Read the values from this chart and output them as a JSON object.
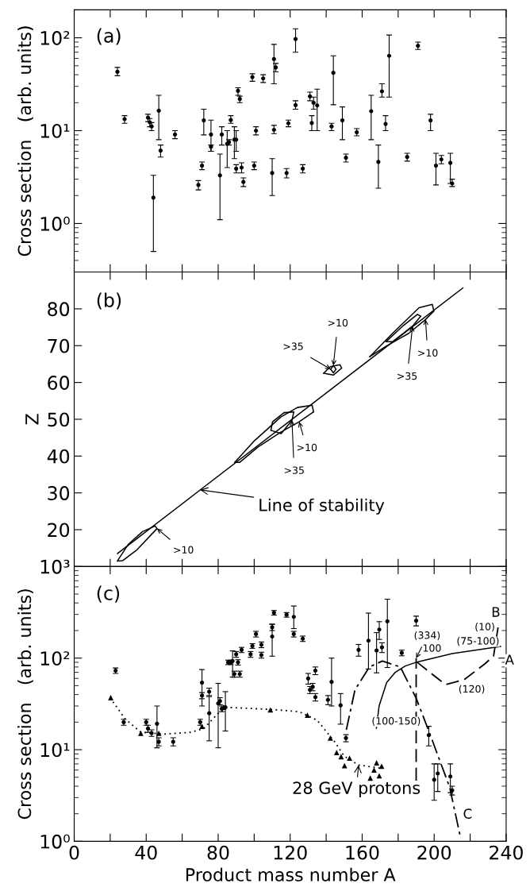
{
  "chart_data": [
    {
      "type": "scatter",
      "ylabel": "Cross section   (arb. units)",
      "log": "y",
      "marker": "circle",
      "tick_labels": "y",
      "legend": false,
      "grid": false,
      "xlim": [
        0,
        240
      ],
      "xticks": [
        {
          "value": 0,
          "label": null
        },
        {
          "value": 20,
          "label": null
        },
        {
          "value": 40,
          "label": null
        },
        {
          "value": 60,
          "label": null
        },
        {
          "value": 80,
          "label": null
        },
        {
          "value": 100,
          "label": null
        },
        {
          "value": 120,
          "label": null
        },
        {
          "value": 140,
          "label": null
        },
        {
          "value": 160,
          "label": null
        },
        {
          "value": 180,
          "label": null
        },
        {
          "value": 200,
          "label": null
        },
        {
          "value": 220,
          "label": null
        },
        {
          "value": 240,
          "label": null
        }
      ],
      "ylim": [
        0.3,
        200
      ],
      "yticks": [
        {
          "value": 1,
          "label": "10⁰"
        },
        {
          "value": 10,
          "label": "10¹"
        },
        {
          "value": 100,
          "label": "10²"
        }
      ],
      "annotations": [
        "(a)"
      ],
      "series": [
        {
          "color": "#000000",
          "x": [
            24,
            28,
            41,
            42,
            43,
            44,
            47,
            48,
            56,
            69,
            71,
            72,
            76,
            76,
            81,
            82,
            85,
            86,
            87,
            89,
            90,
            90,
            91,
            92,
            93,
            94,
            99,
            100,
            101,
            105,
            110,
            111,
            111,
            112,
            118,
            119,
            123,
            123,
            127,
            131,
            132,
            133,
            135,
            143,
            144,
            149,
            151,
            157,
            165,
            169,
            171,
            173,
            175,
            185,
            191,
            198,
            201,
            204,
            209,
            210
          ],
          "values": [
            43,
            13.3,
            13.8,
            12.3,
            11.1,
            1.9,
            16.4,
            6.1,
            9.1,
            2.6,
            4.2,
            12.9,
            9.1,
            6.7,
            3.3,
            9.1,
            7.2,
            7.5,
            13,
            8,
            8,
            3.9,
            26.8,
            21.9,
            4,
            2.8,
            37.7,
            4.2,
            10,
            36.5,
            3.5,
            59,
            10.2,
            48,
            3.5,
            12,
            97,
            18.8,
            3.9,
            23.4,
            12.1,
            20,
            18.7,
            11.1,
            42,
            12.9,
            5.1,
            9.6,
            16.2,
            4.6,
            26.5,
            11.8,
            64,
            5.2,
            82,
            12.9,
            4.2,
            4.9,
            4.5,
            2.7
          ],
          "errors": [
            [
              39,
              48
            ],
            [
              12,
              14.5
            ],
            [
              12.5,
              15
            ],
            [
              11,
              13.5
            ],
            [
              10,
              12.2
            ],
            [
              0.5,
              3.3
            ],
            [
              8,
              24
            ],
            [
              5.2,
              7
            ],
            [
              8.2,
              10
            ],
            [
              2.3,
              2.9
            ],
            [
              3.8,
              4.6
            ],
            [
              9,
              17
            ],
            [
              6,
              13
            ],
            [
              6,
              7
            ],
            [
              1.1,
              5.6
            ],
            [
              7,
              11
            ],
            [
              4,
              10
            ],
            [
              7,
              8
            ],
            [
              12,
              14.5
            ],
            [
              5,
              11
            ],
            [
              6,
              10
            ],
            [
              3.5,
              4.3
            ],
            [
              24,
              29
            ],
            [
              20,
              23.5
            ],
            [
              3.5,
              4.5
            ],
            [
              2.5,
              3.1
            ],
            [
              34,
              41
            ],
            [
              3.8,
              4.6
            ],
            [
              9,
              11
            ],
            [
              33,
              40
            ],
            [
              2,
              5
            ],
            [
              32,
              85
            ],
            [
              9.3,
              11.4
            ],
            [
              43,
              53
            ],
            [
              3.1,
              3.9
            ],
            [
              11,
              13
            ],
            [
              70,
              125
            ],
            [
              17,
              21
            ],
            [
              3.5,
              4.3
            ],
            [
              21,
              26
            ],
            [
              10,
              14.5
            ],
            [
              17,
              23
            ],
            [
              10,
              28
            ],
            [
              10,
              12
            ],
            [
              19,
              64
            ],
            [
              8,
              18
            ],
            [
              4.6,
              5.6
            ],
            [
              8.8,
              10.5
            ],
            [
              8,
              24
            ],
            [
              2.4,
              7
            ],
            [
              23,
              32
            ],
            [
              10,
              14.5
            ],
            [
              23,
              107
            ],
            [
              4.7,
              5.7
            ],
            [
              75,
              90
            ],
            [
              10,
              15
            ],
            [
              2.6,
              5.7
            ],
            [
              4.4,
              5.4
            ],
            [
              2.7,
              5.7
            ],
            [
              2.5,
              3
            ]
          ]
        }
      ]
    },
    {
      "type": "line",
      "ylabel": "Z",
      "tick_labels": "y",
      "legend": false,
      "grid": false,
      "line_style": "solid",
      "xlim": [
        0,
        240
      ],
      "xticks": [
        {
          "value": 0,
          "label": null
        },
        {
          "value": 20,
          "label": null
        },
        {
          "value": 40,
          "label": null
        },
        {
          "value": 60,
          "label": null
        },
        {
          "value": 80,
          "label": null
        },
        {
          "value": 100,
          "label": null
        },
        {
          "value": 120,
          "label": null
        },
        {
          "value": 140,
          "label": null
        },
        {
          "value": 160,
          "label": null
        },
        {
          "value": 180,
          "label": null
        },
        {
          "value": 200,
          "label": null
        },
        {
          "value": 220,
          "label": null
        },
        {
          "value": 240,
          "label": null
        }
      ],
      "ylim": [
        10,
        90
      ],
      "yticks": [
        20,
        30,
        40,
        50,
        60,
        70,
        80
      ],
      "annotations": [
        "(b)",
        {
          "text": ">10",
          "x": 144,
          "y": 64.6
        },
        {
          "text": ">35",
          "x": 142.5,
          "y": 63.6
        },
        {
          "text": ">10",
          "x": 195.2,
          "y": 77.1
        },
        {
          "text": ">35",
          "x": 188,
          "y": 75.3
        },
        {
          "text": ">10",
          "x": 125,
          "y": 49.3
        },
        {
          "text": ">35",
          "x": 121,
          "y": 49.7
        },
        {
          "text": "Line of stability",
          "x": 70,
          "y": 30.8
        },
        {
          "text": ">10",
          "x": 46,
          "y": 20.3
        }
      ],
      "series": [
        {
          "color": "#000000",
          "x": [
            24,
            216
          ],
          "values": [
            13.5,
            85.7
          ]
        },
        {
          "color": "#000000",
          "x": [
            89.2,
            100.2,
            114.8,
            124,
            132.2,
            133
          ],
          "values": [
            38.3,
            44.2,
            50.6,
            53.2,
            53.8,
            52
          ]
        },
        {
          "color": "#000000",
          "x": [
            89.2,
            92,
            102,
            114.8,
            125,
            133
          ],
          "values": [
            38.3,
            38.3,
            42.4,
            46.5,
            49.3,
            52
          ]
        },
        {
          "color": "#000000",
          "x": [
            109.3,
            110.2,
            116.6,
            122
          ],
          "values": [
            47,
            49.3,
            51.8,
            52
          ]
        },
        {
          "color": "#000000",
          "x": [
            109.3,
            115,
            121,
            122
          ],
          "values": [
            47,
            46.1,
            49.7,
            52
          ]
        },
        {
          "color": "#000000",
          "x": [
            164.2,
            177,
            191.6,
            199,
            199.8
          ],
          "values": [
            67,
            73.4,
            80.3,
            81.2,
            79.4
          ]
        },
        {
          "color": "#000000",
          "x": [
            164.2,
            173.2,
            186,
            195.2,
            199.8
          ],
          "values": [
            67,
            69.8,
            73.4,
            77.1,
            79.4
          ]
        },
        {
          "color": "#000000",
          "x": [
            173.3,
            182.5,
            190.7,
            192.5
          ],
          "values": [
            71.1,
            75.3,
            78.5,
            78
          ]
        },
        {
          "color": "#000000",
          "x": [
            173.3,
            177,
            188,
            192.5
          ],
          "values": [
            71.1,
            71.1,
            75.3,
            78
          ]
        },
        {
          "color": "#000000",
          "x": [
            138.6,
            142.3,
            147.7,
            148.6
          ],
          "values": [
            62.5,
            64.3,
            64.8,
            63.9
          ]
        },
        {
          "color": "#000000",
          "x": [
            138.6,
            144,
            148.6
          ],
          "values": [
            62.5,
            62,
            63.9
          ]
        },
        {
          "color": "#000000",
          "x": [
            142.5,
            144,
            145.5
          ],
          "values": [
            63.6,
            64.6,
            63.6
          ]
        },
        {
          "color": "#000000",
          "x": [
            142.5,
            144,
            145.5
          ],
          "values": [
            63.6,
            62.6,
            63.6
          ]
        },
        {
          "color": "#000000",
          "x": [
            24,
            30,
            38,
            45,
            46
          ],
          "values": [
            11.5,
            16,
            19.5,
            21,
            20.3
          ]
        },
        {
          "color": "#000000",
          "x": [
            24,
            27,
            35,
            46
          ],
          "values": [
            11.5,
            11.6,
            14.6,
            20.3
          ]
        }
      ]
    },
    {
      "type": "scatter",
      "xlabel": "Product mass number A",
      "ylabel": "Cross section   (arb. units)",
      "log": "y",
      "legend": false,
      "grid": false,
      "xlim": [
        0,
        240
      ],
      "xticks": [
        0,
        {
          "value": 20,
          "label": null
        },
        40,
        {
          "value": 60,
          "label": null
        },
        80,
        {
          "value": 100,
          "label": null
        },
        120,
        {
          "value": 140,
          "label": null
        },
        160,
        {
          "value": 180,
          "label": null
        },
        200,
        {
          "value": 220,
          "label": null
        },
        240
      ],
      "ylim": [
        1,
        1000
      ],
      "yticks": [
        {
          "value": 1,
          "label": "10⁰"
        },
        {
          "value": 10,
          "label": "10¹"
        },
        {
          "value": 100,
          "label": "10²"
        },
        {
          "value": 1000,
          "label": "10³"
        }
      ],
      "annotations": [
        "(c)",
        {
          "text": "28 GeV protons",
          "x": 158,
          "y": 6.8
        },
        {
          "text": "B",
          "x": 235.5,
          "y": 216
        },
        {
          "text": "A",
          "x": 237,
          "y": 134
        },
        {
          "text": "C",
          "x": 214.3,
          "y": 1.18
        },
        {
          "text": "(10)",
          "x": 235.5,
          "y": 216
        },
        {
          "text": "100",
          "x": 200,
          "y": 101
        },
        {
          "text": "(75-100)",
          "x": 217,
          "y": 117.7
        },
        {
          "text": "(120)",
          "x": 216.6,
          "y": 58
        },
        {
          "text": "(100-150)",
          "x": 167.9,
          "y": 17.1
        },
        {
          "text": "(334)",
          "x": 190,
          "y": 100
        }
      ],
      "series": [
        {
          "type": "scatter",
          "marker": "circle",
          "color": "#000000",
          "x": [
            23,
            27.5,
            40,
            41,
            43,
            46,
            47,
            55,
            70,
            71,
            71,
            75,
            75,
            80,
            81,
            82,
            84,
            85.5,
            87,
            88,
            89,
            90,
            91,
            92,
            93,
            98,
            99,
            101,
            104,
            104,
            110,
            110,
            111,
            118,
            122,
            122,
            127,
            130,
            131,
            132.5,
            134,
            134,
            141,
            143,
            148,
            151,
            158,
            163.5,
            168,
            169.5,
            171,
            174,
            182,
            190,
            197,
            200,
            202,
            209,
            210
          ],
          "values": [
            73,
            20,
            20,
            17,
            15.2,
            19.2,
            12.2,
            12.2,
            20,
            54,
            39,
            43,
            25,
            32,
            34,
            28,
            29,
            90,
            90,
            93,
            67,
            110,
            90,
            67,
            123,
            110,
            136,
            183,
            140,
            108,
            172,
            217,
            313,
            297,
            282,
            183,
            163,
            60,
            45,
            48.5,
            73,
            37.5,
            35,
            55,
            30.5,
            13.4,
            123,
            155,
            121,
            205,
            131,
            252,
            114,
            256,
            14.4,
            4.7,
            5.5,
            5.1,
            3.6
          ],
          "errors": [
            [
              68,
              78
            ],
            [
              18.5,
              21.5
            ],
            [
              18.5,
              21.5
            ],
            [
              15.5,
              18.5
            ],
            [
              14,
              16.5
            ],
            [
              10.5,
              30
            ],
            [
              11,
              13.5
            ],
            [
              11,
              13.5
            ],
            [
              18.5,
              21.5
            ],
            [
              30,
              75
            ],
            [
              36,
              42
            ],
            [
              39,
              47
            ],
            [
              12.5,
              38
            ],
            [
              10.5,
              53
            ],
            [
              31,
              37
            ],
            [
              26,
              30
            ],
            [
              16,
              43
            ],
            [
              85,
              95
            ],
            [
              85,
              95
            ],
            [
              62,
              120
            ],
            [
              62,
              72
            ],
            [
              102,
              118
            ],
            [
              84,
              96
            ],
            [
              62,
              72
            ],
            [
              115,
              131
            ],
            [
              102,
              118
            ],
            [
              128,
              144
            ],
            [
              170,
              196
            ],
            [
              130,
              150
            ],
            [
              100,
              116
            ],
            [
              105,
              235
            ],
            [
              200,
              234
            ],
            [
              295,
              331
            ],
            [
              280,
              314
            ],
            [
              210,
              370
            ],
            [
              170,
              196
            ],
            [
              152,
              174
            ],
            [
              52,
              68
            ],
            [
              41,
              49
            ],
            [
              44,
              53
            ],
            [
              66,
              80
            ],
            [
              34,
              41
            ],
            [
              31,
              39
            ],
            [
              30,
              100
            ],
            [
              19,
              41
            ],
            [
              12.2,
              14.6
            ],
            [
              105,
              141
            ],
            [
              76,
              310
            ],
            [
              69,
              190
            ],
            [
              160,
              250
            ],
            [
              115,
              147
            ],
            [
              79,
              440
            ],
            [
              106,
              122
            ],
            [
              225,
              287
            ],
            [
              11,
              18
            ],
            [
              2.8,
              7
            ],
            [
              3.5,
              7
            ],
            [
              3.4,
              7
            ],
            [
              3.2,
              4
            ]
          ]
        },
        {
          "type": "scatter",
          "marker": "triangle",
          "color": "#000000",
          "x": [
            20.3,
            37,
            47,
            71,
            83,
            109,
            129.6,
            142.3,
            145.8,
            148.3,
            150.2,
            153,
            164.5,
            166.6,
            168,
            169.5,
            170.8
          ],
          "values": [
            37,
            15.1,
            15.1,
            18,
            29,
            27.2,
            23.8,
            13.4,
            9.3,
            8.4,
            6.7,
            8.1,
            4.9,
            6,
            7.2,
            5.2,
            6.6
          ]
        },
        {
          "type": "line",
          "line_style": "dotted",
          "color": "#000000",
          "x": [
            20,
            28,
            37,
            50,
            65,
            72,
            80,
            85,
            110,
            125,
            135,
            145,
            150,
            158,
            170
          ],
          "values": [
            37,
            22,
            15.5,
            14.8,
            15.5,
            17,
            25,
            29,
            27.5,
            26,
            21,
            12,
            8.5,
            6.8,
            6.3
          ]
        },
        {
          "type": "line",
          "line_style": "solid",
          "color": "#000000",
          "x": [
            167.9,
            169.4,
            173.6,
            178.4,
            184,
            190.4,
            210,
            237
          ],
          "values": [
            17.1,
            30,
            54,
            70,
            82,
            90.6,
            112,
            134
          ]
        },
        {
          "type": "line",
          "line_style": "dashed",
          "color": "#000000",
          "x": [
            190.4,
            198.4,
            206.3,
            216.6,
            228,
            233,
            235.5
          ],
          "values": [
            90.6,
            68,
            51.4,
            58,
            86,
            105,
            216
          ]
        },
        {
          "type": "line",
          "line_style": "dashdot",
          "color": "#000000",
          "x": [
            151.2,
            156,
            164,
            171.2,
            181.2,
            190,
            197.3,
            208.6,
            214.3
          ],
          "values": [
            16.5,
            45,
            80,
            93,
            80,
            36.5,
            15.5,
            3.9,
            1.18
          ]
        },
        {
          "type": "line",
          "line_style": "dashed",
          "color": "#000000",
          "x": [
            190,
            190
          ],
          "values": [
            4.6,
            100
          ]
        }
      ]
    }
  ]
}
